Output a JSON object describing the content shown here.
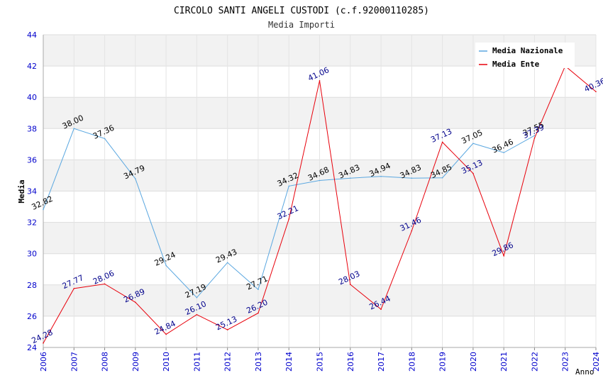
{
  "chart_data": {
    "type": "line",
    "title": "CIRCOLO SANTI ANGELI CUSTODI (c.f.92000110285)",
    "subtitle": "Media Importi",
    "xlabel": "Anno",
    "ylabel": "Media",
    "ylim": [
      24,
      44
    ],
    "yticks": [
      "24",
      "26",
      "28",
      "30",
      "32",
      "34",
      "36",
      "38",
      "40",
      "42",
      "44"
    ],
    "categories": [
      "2006",
      "2007",
      "2008",
      "2009",
      "2010",
      "2011",
      "2012",
      "2013",
      "2014",
      "2015",
      "2016",
      "2017",
      "2018",
      "2019",
      "2020",
      "2021",
      "2022",
      "2023",
      "2024"
    ],
    "legend_position": "top-right",
    "series": [
      {
        "name": "Media Nazionale",
        "color": "#5aa7e0",
        "label_color": "#000000",
        "values": [
          32.82,
          38.0,
          37.36,
          34.79,
          29.24,
          27.19,
          29.43,
          27.71,
          34.32,
          34.68,
          34.83,
          34.94,
          34.83,
          34.85,
          37.05,
          36.46,
          37.55,
          null,
          null
        ],
        "labels": [
          "32.82",
          "38.00",
          "37.36",
          "34.79",
          "29.24",
          "27.19",
          "29.43",
          "27.71",
          "34.32",
          "34.68",
          "34.83",
          "34.94",
          "34.83",
          "34.85",
          "37.05",
          "36.46",
          "37.55",
          "",
          ""
        ]
      },
      {
        "name": "Media Ente",
        "color": "#e8000b",
        "label_color": "#00008b",
        "values": [
          24.28,
          27.77,
          28.06,
          26.89,
          24.84,
          26.1,
          25.13,
          26.2,
          32.21,
          41.06,
          28.03,
          26.44,
          31.46,
          37.13,
          35.13,
          29.86,
          37.39,
          42.0,
          40.36
        ],
        "labels": [
          "24.28",
          "27.77",
          "28.06",
          "26.89",
          "24.84",
          "26.10",
          "25.13",
          "26.20",
          "32.21",
          "41.06",
          "28.03",
          "26.44",
          "31.46",
          "37.13",
          "35.13",
          "29.86",
          "37.39",
          "",
          "40.36"
        ]
      }
    ],
    "axis_tick_color": "#0000cc",
    "grid": true
  }
}
